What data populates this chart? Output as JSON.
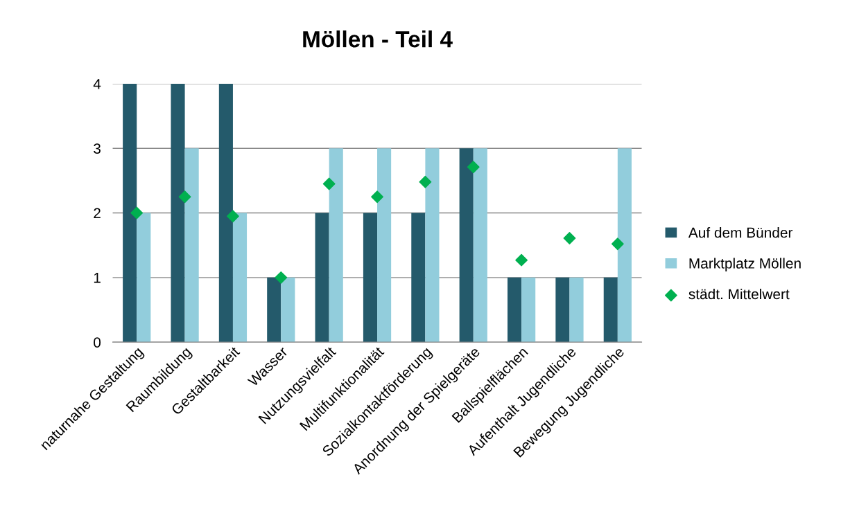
{
  "chart_data": {
    "type": "bar",
    "title": "Möllen - Teil 4",
    "categories": [
      "naturnahe Gestaltung",
      "Raumbildung",
      "Gestaltbarkeit",
      "Wasser",
      "Nutzungsvielfalt",
      "Multifunktionalität",
      "Sozialkontaktförderung",
      "Anordnung der Spielgeräte",
      "Ballspielflächen",
      "Aufenthalt Jugendliche",
      "Bewegung Jugendliche"
    ],
    "series": [
      {
        "name": "Auf dem Bünder",
        "color": "#245a6b",
        "values": [
          4,
          4,
          4,
          1,
          2,
          2,
          2,
          3,
          1,
          1,
          1
        ]
      },
      {
        "name": "Marktplatz Möllen",
        "color": "#92cddc",
        "values": [
          2,
          3,
          2,
          1,
          3,
          3,
          3,
          3,
          1,
          1,
          3
        ]
      },
      {
        "name": "städt. Mittelwert",
        "type": "scatter",
        "color": "#00b050",
        "marker": "diamond",
        "values": [
          2.0,
          2.25,
          1.95,
          1.0,
          2.45,
          2.25,
          2.48,
          2.71,
          1.27,
          1.61,
          1.52
        ]
      }
    ],
    "ylim": [
      0,
      4
    ],
    "yticks": [
      0,
      1,
      2,
      3,
      4
    ],
    "grid": "y",
    "legend": "right"
  }
}
